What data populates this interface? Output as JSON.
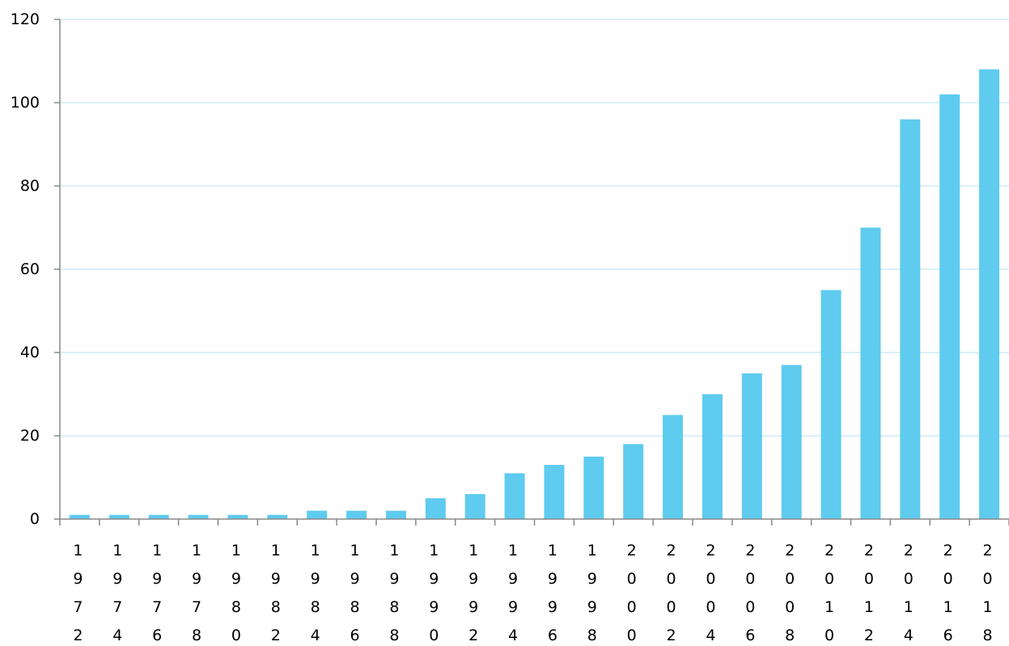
{
  "chart_data": {
    "type": "bar",
    "title": "",
    "xlabel": "",
    "ylabel": "",
    "categories": [
      "1972",
      "1974",
      "1976",
      "1978",
      "1980",
      "1982",
      "1984",
      "1986",
      "1988",
      "1990",
      "1992",
      "1994",
      "1996",
      "1998",
      "2000",
      "2002",
      "2004",
      "2006",
      "2008",
      "2010",
      "2012",
      "2014",
      "2016",
      "2018"
    ],
    "values": [
      1,
      1,
      1,
      1,
      1,
      1,
      2,
      2,
      2,
      5,
      6,
      11,
      13,
      15,
      18,
      25,
      30,
      35,
      37,
      55,
      70,
      96,
      102,
      108
    ],
    "ylim": [
      0,
      120
    ],
    "yticks": [
      "0",
      "20",
      "40",
      "60",
      "80",
      "100",
      "120"
    ],
    "grid": true,
    "legend": "none",
    "bar_color": "#5ecbef"
  }
}
